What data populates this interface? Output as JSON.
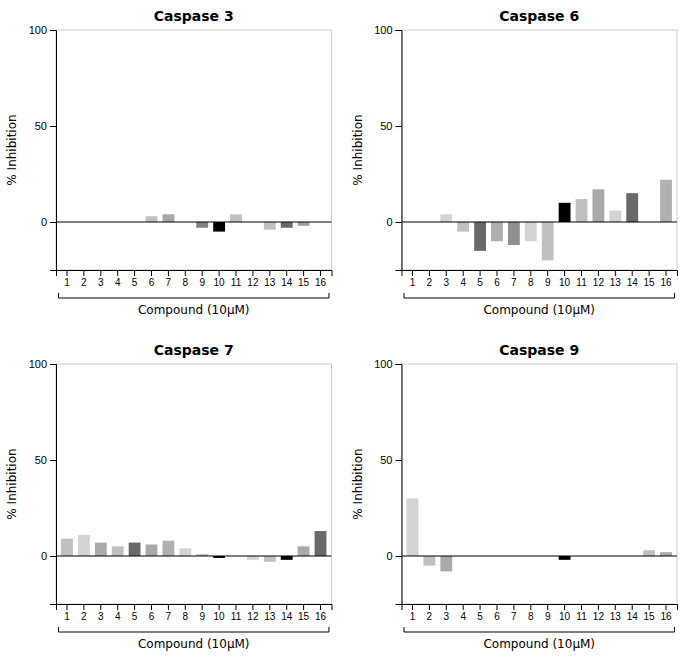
{
  "chart_data": [
    {
      "type": "bar",
      "title": "Caspase 3",
      "categories": [
        "1",
        "2",
        "3",
        "4",
        "5",
        "6",
        "7",
        "8",
        "9",
        "10",
        "11",
        "12",
        "13",
        "14",
        "15",
        "16"
      ],
      "values": [
        0,
        0,
        0,
        0,
        0,
        3,
        4,
        0,
        -3,
        -5,
        4,
        0,
        -4,
        -3,
        -2,
        0
      ],
      "colors": [
        "#d3d3d3",
        "#d3d3d3",
        "#d3d3d3",
        "#d3d3d3",
        "#d3d3d3",
        "#c0c0c0",
        "#a9a9a9",
        "#d3d3d3",
        "#808080",
        "#000000",
        "#c0c0c0",
        "#d3d3d3",
        "#c0c0c0",
        "#696969",
        "#a0a0a0",
        "#d3d3d3"
      ],
      "ylim": [
        -25,
        100
      ],
      "yticks": [
        0,
        50,
        100
      ],
      "xlabel": "Compound (10μM)",
      "ylabel": "% Inhibition"
    },
    {
      "type": "bar",
      "title": "Caspase 6",
      "categories": [
        "1",
        "2",
        "3",
        "4",
        "5",
        "6",
        "7",
        "8",
        "9",
        "10",
        "11",
        "12",
        "13",
        "14",
        "15",
        "16"
      ],
      "values": [
        0,
        0,
        4,
        -5,
        -15,
        -10,
        -12,
        -10,
        -20,
        10,
        12,
        17,
        6,
        15,
        0,
        22
      ],
      "colors": [
        "#d3d3d3",
        "#d3d3d3",
        "#d3d3d3",
        "#c0c0c0",
        "#696969",
        "#b0b0b0",
        "#909090",
        "#d3d3d3",
        "#c0c0c0",
        "#000000",
        "#c0c0c0",
        "#a9a9a9",
        "#d3d3d3",
        "#696969",
        "#c0c0c0",
        "#b0b0b0"
      ],
      "ylim": [
        -25,
        100
      ],
      "yticks": [
        0,
        50,
        100
      ],
      "xlabel": "Compound (10μM)",
      "ylabel": "% Inhibition"
    },
    {
      "type": "bar",
      "title": "Caspase 7",
      "categories": [
        "1",
        "2",
        "3",
        "4",
        "5",
        "6",
        "7",
        "8",
        "9",
        "10",
        "11",
        "12",
        "13",
        "14",
        "15",
        "16"
      ],
      "values": [
        9,
        11,
        7,
        5,
        7,
        6,
        8,
        4,
        1,
        -1,
        0,
        -2,
        -3,
        -2,
        5,
        13
      ],
      "colors": [
        "#c0c0c0",
        "#d3d3d3",
        "#a9a9a9",
        "#c0c0c0",
        "#696969",
        "#a9a9a9",
        "#b0b0b0",
        "#d3d3d3",
        "#c0c0c0",
        "#000000",
        "#808080",
        "#d3d3d3",
        "#c0c0c0",
        "#000000",
        "#a9a9a9",
        "#696969"
      ],
      "ylim": [
        -25,
        100
      ],
      "yticks": [
        0,
        50,
        100
      ],
      "xlabel": "Compound (10μM)",
      "ylabel": "% Inhibition"
    },
    {
      "type": "bar",
      "title": "Caspase 9",
      "categories": [
        "1",
        "2",
        "3",
        "4",
        "5",
        "6",
        "7",
        "8",
        "9",
        "10",
        "11",
        "12",
        "13",
        "14",
        "15",
        "16"
      ],
      "values": [
        30,
        -5,
        -8,
        0,
        0,
        0,
        0,
        0,
        0,
        -2,
        0,
        0,
        0,
        0,
        3,
        2
      ],
      "colors": [
        "#d3d3d3",
        "#c0c0c0",
        "#a9a9a9",
        "#d3d3d3",
        "#d3d3d3",
        "#d3d3d3",
        "#d3d3d3",
        "#d3d3d3",
        "#d3d3d3",
        "#000000",
        "#d3d3d3",
        "#d3d3d3",
        "#d3d3d3",
        "#d3d3d3",
        "#c0c0c0",
        "#a9a9a9"
      ],
      "ylim": [
        -25,
        100
      ],
      "yticks": [
        0,
        50,
        100
      ],
      "xlabel": "Compound (10μM)",
      "ylabel": "% Inhibition"
    }
  ]
}
